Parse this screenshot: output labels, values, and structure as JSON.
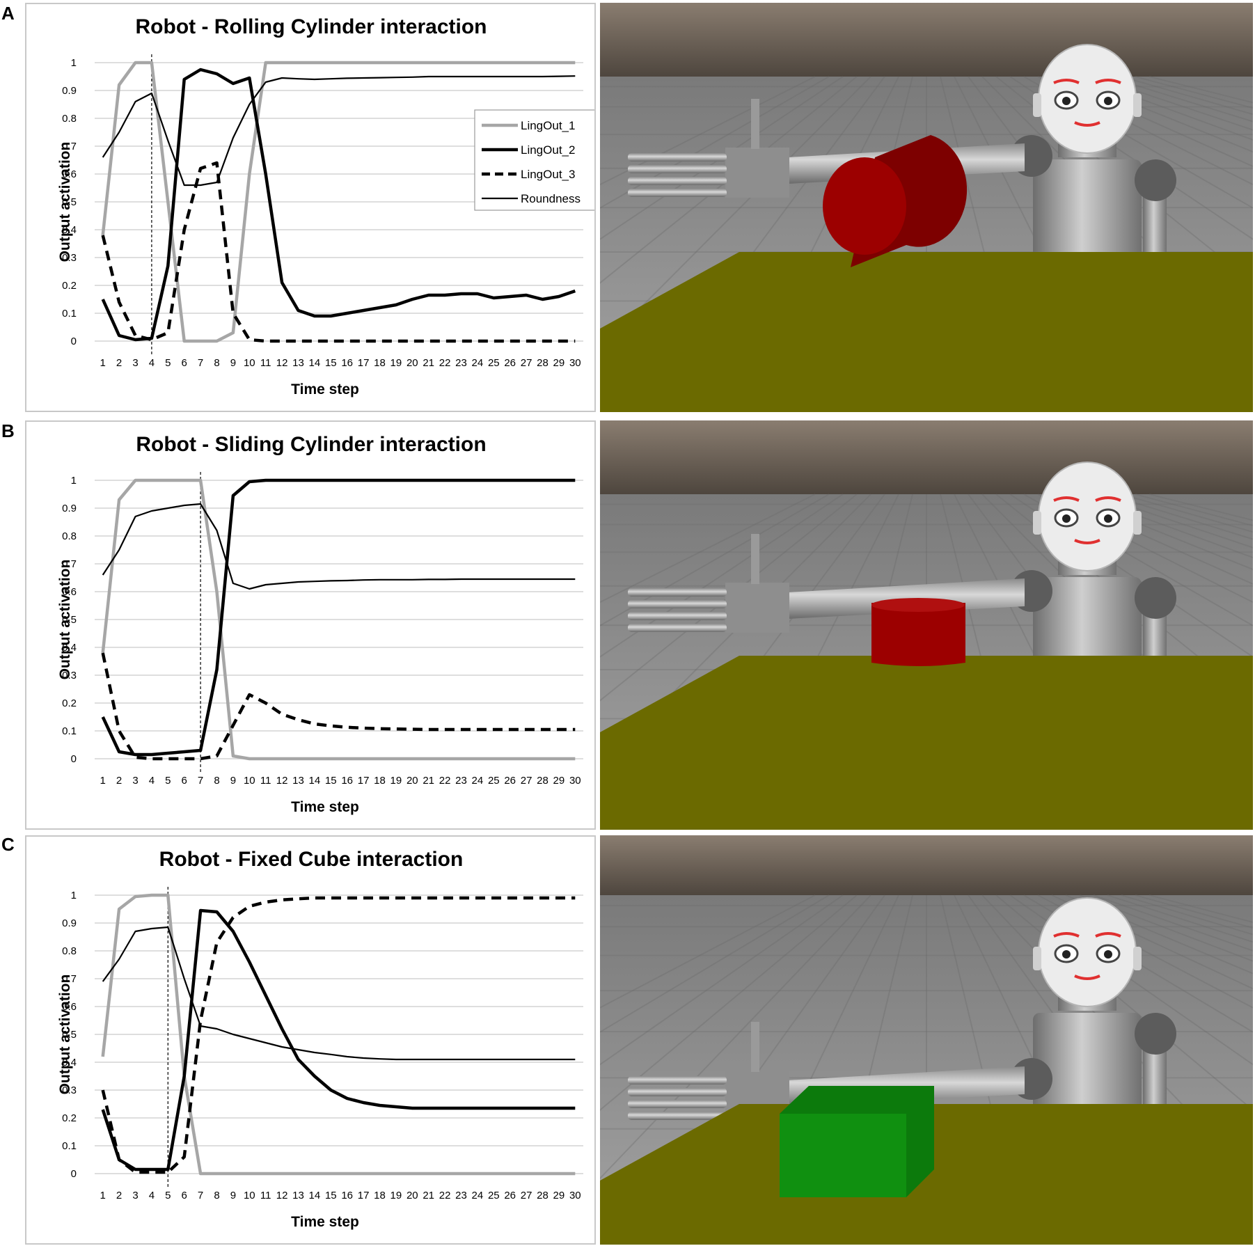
{
  "panels": [
    {
      "letter": "A",
      "chart_data": {
        "type": "line",
        "title": "Robot - Rolling Cylinder interaction",
        "xlabel": "Time step",
        "ylabel": "Output activation",
        "ylim": [
          0,
          1
        ],
        "yticks": [
          "0",
          "0.1",
          "0.2",
          "0.3",
          "0.4",
          "0.5",
          "0.6",
          "0.7",
          "0.8",
          "0.9",
          "1"
        ],
        "categories": [
          "1",
          "2",
          "3",
          "4",
          "5",
          "6",
          "7",
          "8",
          "9",
          "10",
          "11",
          "12",
          "13",
          "14",
          "15",
          "16",
          "17",
          "18",
          "19",
          "20",
          "21",
          "22",
          "23",
          "24",
          "25",
          "26",
          "27",
          "28",
          "29",
          "30"
        ],
        "grid": true,
        "legend_position": "top-right",
        "vline_at": 4,
        "series": [
          {
            "name": "LingOut_1",
            "style": "gray-thick",
            "color": "#a6a6a6",
            "values": [
              0.38,
              0.92,
              1.0,
              1.0,
              0.5,
              0.0,
              0.0,
              0.0,
              0.03,
              0.6,
              1.0,
              1.0,
              1.0,
              1.0,
              1.0,
              1.0,
              1.0,
              1.0,
              1.0,
              1.0,
              1.0,
              1.0,
              1.0,
              1.0,
              1.0,
              1.0,
              1.0,
              1.0,
              1.0,
              1.0
            ]
          },
          {
            "name": "LingOut_2",
            "style": "black-thick",
            "color": "#000000",
            "values": [
              0.15,
              0.02,
              0.005,
              0.01,
              0.27,
              0.94,
              0.975,
              0.96,
              0.925,
              0.945,
              0.6,
              0.21,
              0.11,
              0.09,
              0.09,
              0.1,
              0.11,
              0.12,
              0.13,
              0.15,
              0.165,
              0.165,
              0.17,
              0.17,
              0.155,
              0.16,
              0.165,
              0.15,
              0.16,
              0.18
            ]
          },
          {
            "name": "LingOut_3",
            "style": "black-dashed",
            "color": "#000000",
            "values": [
              0.38,
              0.14,
              0.02,
              0.005,
              0.03,
              0.4,
              0.62,
              0.64,
              0.1,
              0.005,
              0.0,
              0.0,
              0.0,
              0.0,
              0.0,
              0.0,
              0.0,
              0.0,
              0.0,
              0.0,
              0.0,
              0.0,
              0.0,
              0.0,
              0.0,
              0.0,
              0.0,
              0.0,
              0.0,
              0.0
            ]
          },
          {
            "name": "Roundness",
            "style": "black-thin",
            "color": "#000000",
            "values": [
              0.66,
              0.75,
              0.86,
              0.89,
              0.72,
              0.56,
              0.56,
              0.57,
              0.73,
              0.85,
              0.93,
              0.945,
              0.942,
              0.94,
              0.942,
              0.944,
              0.945,
              0.946,
              0.947,
              0.948,
              0.95,
              0.95,
              0.95,
              0.95,
              0.95,
              0.95,
              0.95,
              0.95,
              0.951,
              0.952
            ]
          }
        ]
      },
      "scene": {
        "object": "cylinder-rolling",
        "object_color": "#9c0000"
      }
    },
    {
      "letter": "B",
      "chart_data": {
        "type": "line",
        "title": "Robot - Sliding Cylinder interaction",
        "xlabel": "Time step",
        "ylabel": "Output activation",
        "ylim": [
          0,
          1
        ],
        "yticks": [
          "0",
          "0.1",
          "0.2",
          "0.3",
          "0.4",
          "0.5",
          "0.6",
          "0.7",
          "0.8",
          "0.9",
          "1"
        ],
        "categories": [
          "1",
          "2",
          "3",
          "4",
          "5",
          "6",
          "7",
          "8",
          "9",
          "10",
          "11",
          "12",
          "13",
          "14",
          "15",
          "16",
          "17",
          "18",
          "19",
          "20",
          "21",
          "22",
          "23",
          "24",
          "25",
          "26",
          "27",
          "28",
          "29",
          "30"
        ],
        "grid": true,
        "vline_at": 7,
        "series": [
          {
            "style": "gray-thick",
            "color": "#a6a6a6",
            "values": [
              0.38,
              0.93,
              1.0,
              1.0,
              1.0,
              1.0,
              1.0,
              0.6,
              0.01,
              0.0,
              0.0,
              0.0,
              0.0,
              0.0,
              0.0,
              0.0,
              0.0,
              0.0,
              0.0,
              0.0,
              0.0,
              0.0,
              0.0,
              0.0,
              0.0,
              0.0,
              0.0,
              0.0,
              0.0,
              0.0
            ]
          },
          {
            "style": "black-thick",
            "color": "#000000",
            "values": [
              0.15,
              0.025,
              0.015,
              0.015,
              0.02,
              0.025,
              0.03,
              0.32,
              0.945,
              0.995,
              1.0,
              1.0,
              1.0,
              1.0,
              1.0,
              1.0,
              1.0,
              1.0,
              1.0,
              1.0,
              1.0,
              1.0,
              1.0,
              1.0,
              1.0,
              1.0,
              1.0,
              1.0,
              1.0,
              1.0
            ]
          },
          {
            "style": "black-dashed",
            "color": "#000000",
            "values": [
              0.38,
              0.1,
              0.005,
              0.0,
              0.0,
              0.0,
              0.0,
              0.01,
              0.12,
              0.23,
              0.2,
              0.16,
              0.14,
              0.125,
              0.118,
              0.113,
              0.11,
              0.108,
              0.107,
              0.106,
              0.105,
              0.105,
              0.105,
              0.105,
              0.105,
              0.105,
              0.105,
              0.105,
              0.105,
              0.105
            ]
          },
          {
            "style": "black-thin",
            "color": "#000000",
            "values": [
              0.66,
              0.75,
              0.87,
              0.89,
              0.9,
              0.91,
              0.915,
              0.82,
              0.63,
              0.61,
              0.625,
              0.63,
              0.635,
              0.637,
              0.639,
              0.64,
              0.642,
              0.643,
              0.643,
              0.643,
              0.644,
              0.644,
              0.645,
              0.645,
              0.645,
              0.645,
              0.645,
              0.645,
              0.645,
              0.645
            ]
          }
        ]
      },
      "scene": {
        "object": "cylinder-sliding",
        "object_color": "#9c0000"
      }
    },
    {
      "letter": "C",
      "chart_data": {
        "type": "line",
        "title": "Robot - Fixed Cube interaction",
        "xlabel": "Time step",
        "ylabel": "Output activation",
        "ylim": [
          0,
          1
        ],
        "yticks": [
          "0",
          "0.1",
          "0.2",
          "0.3",
          "0.4",
          "0.5",
          "0.6",
          "0.7",
          "0.8",
          "0.9",
          "1"
        ],
        "categories": [
          "1",
          "2",
          "3",
          "4",
          "5",
          "6",
          "7",
          "8",
          "9",
          "10",
          "11",
          "12",
          "13",
          "14",
          "15",
          "16",
          "17",
          "18",
          "19",
          "20",
          "21",
          "22",
          "23",
          "24",
          "25",
          "26",
          "27",
          "28",
          "29",
          "30"
        ],
        "grid": true,
        "vline_at": 5,
        "series": [
          {
            "style": "gray-thick",
            "color": "#a6a6a6",
            "values": [
              0.42,
              0.95,
              0.995,
              1.0,
              1.0,
              0.35,
              0.0,
              0.0,
              0.0,
              0.0,
              0.0,
              0.0,
              0.0,
              0.0,
              0.0,
              0.0,
              0.0,
              0.0,
              0.0,
              0.0,
              0.0,
              0.0,
              0.0,
              0.0,
              0.0,
              0.0,
              0.0,
              0.0,
              0.0,
              0.0
            ]
          },
          {
            "style": "black-thick",
            "color": "#000000",
            "values": [
              0.23,
              0.05,
              0.015,
              0.015,
              0.015,
              0.35,
              0.945,
              0.94,
              0.87,
              0.76,
              0.64,
              0.52,
              0.41,
              0.35,
              0.3,
              0.27,
              0.255,
              0.245,
              0.24,
              0.235,
              0.235,
              0.235,
              0.235,
              0.235,
              0.235,
              0.235,
              0.235,
              0.235,
              0.235,
              0.235
            ]
          },
          {
            "style": "black-dashed",
            "color": "#000000",
            "values": [
              0.3,
              0.05,
              0.005,
              0.005,
              0.005,
              0.06,
              0.55,
              0.83,
              0.92,
              0.96,
              0.975,
              0.983,
              0.987,
              0.99,
              0.99,
              0.99,
              0.99,
              0.99,
              0.99,
              0.99,
              0.99,
              0.99,
              0.99,
              0.99,
              0.99,
              0.99,
              0.99,
              0.99,
              0.99,
              0.99
            ]
          },
          {
            "style": "black-thin",
            "color": "#000000",
            "values": [
              0.69,
              0.77,
              0.87,
              0.88,
              0.885,
              0.7,
              0.53,
              0.52,
              0.5,
              0.485,
              0.47,
              0.455,
              0.445,
              0.435,
              0.428,
              0.42,
              0.415,
              0.412,
              0.41,
              0.41,
              0.41,
              0.41,
              0.41,
              0.41,
              0.41,
              0.41,
              0.41,
              0.41,
              0.41,
              0.41
            ]
          }
        ]
      },
      "scene": {
        "object": "cube-fixed",
        "object_color": "#109010"
      }
    }
  ],
  "colors": {
    "table": "#6b6a00",
    "sky": "#6f6355",
    "floor": "#8c8c8c",
    "eyebrows": "#e03030"
  }
}
